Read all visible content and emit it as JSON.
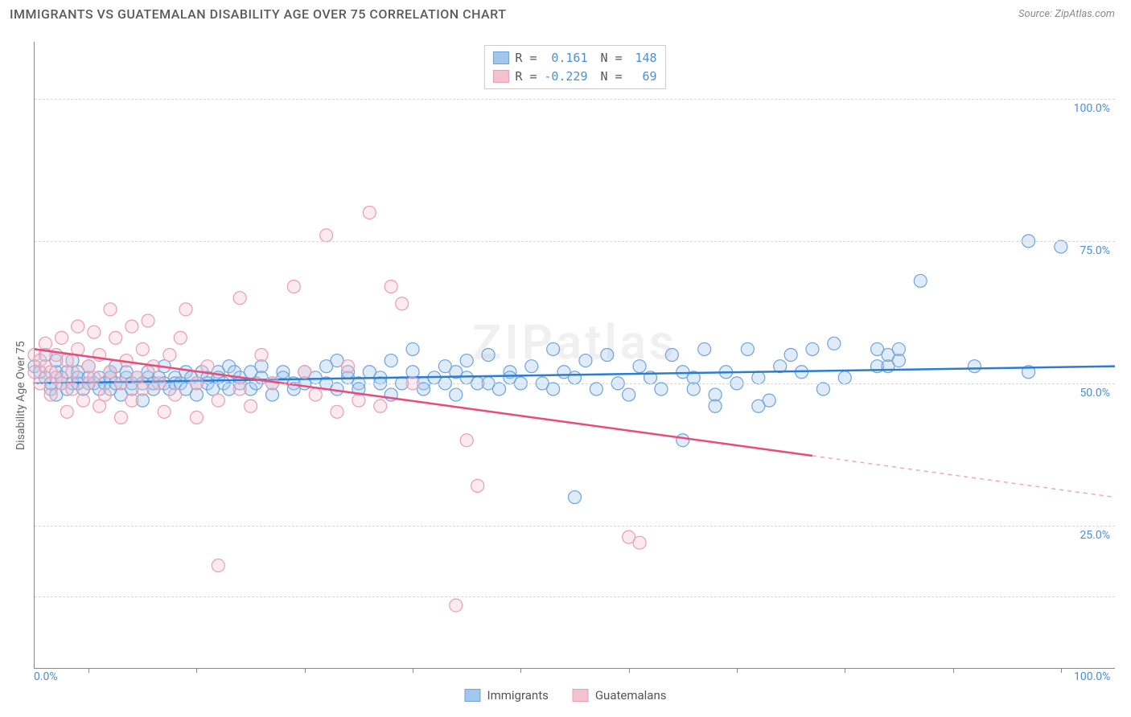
{
  "title": "IMMIGRANTS VS GUATEMALAN DISABILITY AGE OVER 75 CORRELATION CHART",
  "source": "Source: ZipAtlas.com",
  "watermark": "ZIPatlas",
  "ylabel": "Disability Age Over 75",
  "chart": {
    "type": "scatter",
    "xlim": [
      0,
      100
    ],
    "ylim": [
      0,
      110
    ],
    "gridlines_y": [
      12.5,
      25,
      50,
      75,
      100
    ],
    "grid_labels": [
      {
        "y": 25,
        "text": "25.0%"
      },
      {
        "y": 50,
        "text": "50.0%"
      },
      {
        "y": 75,
        "text": "75.0%"
      },
      {
        "y": 100,
        "text": "100.0%"
      }
    ],
    "x_labels": [
      {
        "x": 0,
        "text": "0.0%"
      },
      {
        "x": 100,
        "text": "100.0%"
      }
    ],
    "x_ticks": [
      5,
      15,
      25,
      35,
      45,
      55,
      65,
      75,
      85,
      95
    ],
    "background_color": "#ffffff",
    "grid_color": "#d8d8d8",
    "marker_radius": 8,
    "series": [
      {
        "name": "Immigrants",
        "color_fill": "#a3c6ed",
        "color_stroke": "#6ea3db",
        "R": "0.161",
        "N": "148",
        "regression": {
          "x1": 0,
          "y1": 50,
          "x2": 100,
          "y2": 53,
          "color": "#2b7cd3",
          "solid_until": 100
        },
        "points": [
          [
            0,
            53
          ],
          [
            0.5,
            52
          ],
          [
            1,
            51
          ],
          [
            1,
            55
          ],
          [
            1.5,
            49
          ],
          [
            1.5,
            50
          ],
          [
            2,
            52
          ],
          [
            2,
            54
          ],
          [
            2,
            48
          ],
          [
            2.5,
            51
          ],
          [
            2.5,
            50
          ],
          [
            3,
            52
          ],
          [
            3,
            49
          ],
          [
            3.5,
            54
          ],
          [
            3.5,
            50
          ],
          [
            4,
            50
          ],
          [
            4,
            52
          ],
          [
            4,
            51
          ],
          [
            4.5,
            49
          ],
          [
            5,
            50
          ],
          [
            5,
            51
          ],
          [
            5,
            53
          ],
          [
            5.5,
            50
          ],
          [
            6,
            49
          ],
          [
            6,
            51
          ],
          [
            6.5,
            50
          ],
          [
            7,
            52
          ],
          [
            7,
            51
          ],
          [
            7,
            49
          ],
          [
            7.5,
            50
          ],
          [
            7.5,
            53
          ],
          [
            8,
            50
          ],
          [
            8,
            48
          ],
          [
            8.5,
            51
          ],
          [
            8.5,
            52
          ],
          [
            9,
            50
          ],
          [
            9,
            49
          ],
          [
            9.5,
            51
          ],
          [
            10,
            50
          ],
          [
            10,
            47
          ],
          [
            10.5,
            51
          ],
          [
            10.5,
            52
          ],
          [
            11,
            50
          ],
          [
            11,
            49
          ],
          [
            11.5,
            51
          ],
          [
            12,
            53
          ],
          [
            12,
            50
          ],
          [
            12.5,
            49
          ],
          [
            13,
            51
          ],
          [
            13,
            50
          ],
          [
            13.5,
            50
          ],
          [
            14,
            52
          ],
          [
            14,
            49
          ],
          [
            14.5,
            51
          ],
          [
            15,
            50
          ],
          [
            15,
            48
          ],
          [
            15.5,
            52
          ],
          [
            16,
            51
          ],
          [
            16,
            50
          ],
          [
            16.5,
            49
          ],
          [
            17,
            52
          ],
          [
            17,
            51
          ],
          [
            17.5,
            50
          ],
          [
            18,
            49
          ],
          [
            18,
            53
          ],
          [
            18.5,
            52
          ],
          [
            19,
            50
          ],
          [
            19,
            51
          ],
          [
            20,
            49
          ],
          [
            20,
            52
          ],
          [
            20.5,
            50
          ],
          [
            21,
            53
          ],
          [
            21,
            51
          ],
          [
            22,
            50
          ],
          [
            22,
            48
          ],
          [
            23,
            52
          ],
          [
            23,
            51
          ],
          [
            24,
            50
          ],
          [
            24,
            49
          ],
          [
            25,
            52
          ],
          [
            25,
            50
          ],
          [
            26,
            51
          ],
          [
            27,
            50
          ],
          [
            27,
            53
          ],
          [
            28,
            49
          ],
          [
            28,
            54
          ],
          [
            29,
            51
          ],
          [
            29,
            52
          ],
          [
            30,
            50
          ],
          [
            30,
            49
          ],
          [
            31,
            52
          ],
          [
            32,
            51
          ],
          [
            32,
            50
          ],
          [
            33,
            54
          ],
          [
            33,
            48
          ],
          [
            34,
            50
          ],
          [
            35,
            52
          ],
          [
            35,
            56
          ],
          [
            36,
            50
          ],
          [
            36,
            49
          ],
          [
            37,
            51
          ],
          [
            38,
            53
          ],
          [
            38,
            50
          ],
          [
            39,
            52
          ],
          [
            39,
            48
          ],
          [
            40,
            54
          ],
          [
            40,
            51
          ],
          [
            41,
            50
          ],
          [
            42,
            55
          ],
          [
            42,
            50
          ],
          [
            43,
            49
          ],
          [
            44,
            52
          ],
          [
            44,
            51
          ],
          [
            45,
            50
          ],
          [
            46,
            53
          ],
          [
            47,
            50
          ],
          [
            48,
            56
          ],
          [
            48,
            49
          ],
          [
            49,
            52
          ],
          [
            50,
            51
          ],
          [
            50,
            30
          ],
          [
            51,
            54
          ],
          [
            52,
            49
          ],
          [
            53,
            55
          ],
          [
            54,
            50
          ],
          [
            55,
            48
          ],
          [
            56,
            53
          ],
          [
            57,
            51
          ],
          [
            58,
            49
          ],
          [
            59,
            55
          ],
          [
            60,
            40
          ],
          [
            60,
            52
          ],
          [
            61,
            49
          ],
          [
            61,
            51
          ],
          [
            62,
            56
          ],
          [
            63,
            48
          ],
          [
            63,
            46
          ],
          [
            64,
            52
          ],
          [
            65,
            50
          ],
          [
            66,
            56
          ],
          [
            67,
            51
          ],
          [
            67,
            46
          ],
          [
            68,
            47
          ],
          [
            69,
            53
          ],
          [
            70,
            55
          ],
          [
            71,
            52
          ],
          [
            72,
            56
          ],
          [
            73,
            49
          ],
          [
            74,
            57
          ],
          [
            75,
            51
          ],
          [
            78,
            53
          ],
          [
            78,
            56
          ],
          [
            79,
            53
          ],
          [
            79,
            55
          ],
          [
            80,
            54
          ],
          [
            80,
            56
          ],
          [
            82,
            68
          ],
          [
            87,
            53
          ],
          [
            92,
            75
          ],
          [
            92,
            52
          ],
          [
            95,
            74
          ]
        ]
      },
      {
        "name": "Guatemalans",
        "color_fill": "#f4c2cf",
        "color_stroke": "#ec9db2",
        "R": "-0.229",
        "N": "69",
        "regression": {
          "x1": 0,
          "y1": 56,
          "x2": 100,
          "y2": 30,
          "color": "#e94b7a",
          "solid_until": 72
        },
        "points": [
          [
            0,
            52
          ],
          [
            0,
            55
          ],
          [
            0.5,
            54
          ],
          [
            0.5,
            50
          ],
          [
            1,
            53
          ],
          [
            1,
            57
          ],
          [
            1.5,
            52
          ],
          [
            1.5,
            48
          ],
          [
            2,
            51
          ],
          [
            2,
            55
          ],
          [
            2.5,
            58
          ],
          [
            2.5,
            50
          ],
          [
            3,
            45
          ],
          [
            3,
            54
          ],
          [
            3.5,
            52
          ],
          [
            3.5,
            49
          ],
          [
            4,
            56
          ],
          [
            4,
            60
          ],
          [
            4.5,
            47
          ],
          [
            5,
            53
          ],
          [
            5,
            50
          ],
          [
            5.5,
            59
          ],
          [
            5.5,
            51
          ],
          [
            6,
            46
          ],
          [
            6,
            55
          ],
          [
            6.5,
            48
          ],
          [
            7,
            63
          ],
          [
            7,
            52
          ],
          [
            7.5,
            58
          ],
          [
            8,
            50
          ],
          [
            8,
            44
          ],
          [
            8.5,
            54
          ],
          [
            9,
            47
          ],
          [
            9,
            60
          ],
          [
            9.5,
            51
          ],
          [
            10,
            56
          ],
          [
            10,
            49
          ],
          [
            10.5,
            61
          ],
          [
            11,
            53
          ],
          [
            11.5,
            50
          ],
          [
            12,
            45
          ],
          [
            12.5,
            55
          ],
          [
            13,
            48
          ],
          [
            13.5,
            58
          ],
          [
            14,
            63
          ],
          [
            15,
            50
          ],
          [
            15,
            44
          ],
          [
            16,
            53
          ],
          [
            17,
            47
          ],
          [
            17,
            18
          ],
          [
            19,
            65
          ],
          [
            19,
            49
          ],
          [
            20,
            46
          ],
          [
            21,
            55
          ],
          [
            22,
            50
          ],
          [
            24,
            67
          ],
          [
            25,
            52
          ],
          [
            26,
            48
          ],
          [
            27,
            76
          ],
          [
            28,
            45
          ],
          [
            29,
            53
          ],
          [
            30,
            47
          ],
          [
            31,
            80
          ],
          [
            32,
            46
          ],
          [
            33,
            67
          ],
          [
            34,
            64
          ],
          [
            35,
            50
          ],
          [
            39,
            11
          ],
          [
            40,
            40
          ],
          [
            41,
            32
          ],
          [
            55,
            23
          ],
          [
            56,
            22
          ]
        ]
      }
    ]
  },
  "legend": {
    "items": [
      {
        "label": "Immigrants",
        "fill": "#a3c6ed",
        "stroke": "#6ea3db"
      },
      {
        "label": "Guatemalans",
        "fill": "#f4c2cf",
        "stroke": "#ec9db2"
      }
    ]
  }
}
